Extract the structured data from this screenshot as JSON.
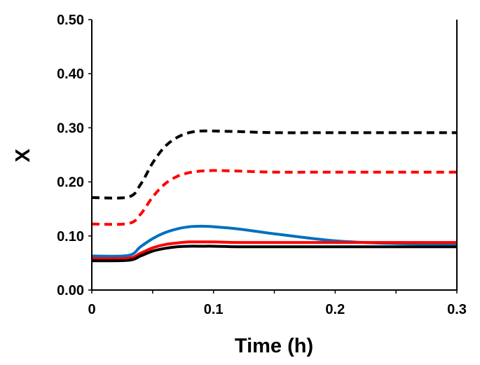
{
  "chart_data": {
    "type": "line",
    "title": "",
    "xlabel": "Time (h)",
    "ylabel": "X",
    "xlim": [
      0,
      0.3
    ],
    "ylim": [
      0,
      0.5
    ],
    "grid": false,
    "x_ticks": [
      "0",
      "0.1",
      "0.2",
      "0.3"
    ],
    "x_tick_values": [
      0,
      0.1,
      0.2,
      0.3
    ],
    "x_minor_step": 0.05,
    "y_ticks": [
      "0.00",
      "0.10",
      "0.20",
      "0.30",
      "0.40",
      "0.50"
    ],
    "y_tick_values": [
      0,
      0.1,
      0.2,
      0.3,
      0.4,
      0.5
    ],
    "x": [
      0,
      0.03,
      0.04,
      0.05,
      0.06,
      0.07,
      0.08,
      0.09,
      0.1,
      0.12,
      0.15,
      0.2,
      0.25,
      0.3
    ],
    "series": [
      {
        "name": "black-dashed",
        "color": "#000000",
        "dashed": true,
        "values": [
          0.171,
          0.172,
          0.195,
          0.235,
          0.265,
          0.282,
          0.291,
          0.294,
          0.294,
          0.293,
          0.291,
          0.291,
          0.291,
          0.291
        ]
      },
      {
        "name": "red-dashed",
        "color": "#ff0000",
        "dashed": true,
        "values": [
          0.122,
          0.123,
          0.14,
          0.172,
          0.196,
          0.21,
          0.217,
          0.22,
          0.221,
          0.22,
          0.218,
          0.218,
          0.218,
          0.218
        ]
      },
      {
        "name": "blue-solid",
        "color": "#0070c0",
        "dashed": false,
        "values": [
          0.063,
          0.064,
          0.08,
          0.095,
          0.106,
          0.113,
          0.117,
          0.118,
          0.117,
          0.113,
          0.104,
          0.091,
          0.086,
          0.085
        ]
      },
      {
        "name": "red-solid",
        "color": "#ff0000",
        "dashed": false,
        "values": [
          0.058,
          0.059,
          0.068,
          0.078,
          0.084,
          0.087,
          0.089,
          0.089,
          0.089,
          0.088,
          0.088,
          0.088,
          0.088,
          0.088
        ]
      },
      {
        "name": "black-solid",
        "color": "#000000",
        "dashed": false,
        "values": [
          0.054,
          0.055,
          0.063,
          0.072,
          0.077,
          0.08,
          0.081,
          0.081,
          0.081,
          0.08,
          0.08,
          0.08,
          0.08,
          0.08
        ]
      }
    ]
  }
}
